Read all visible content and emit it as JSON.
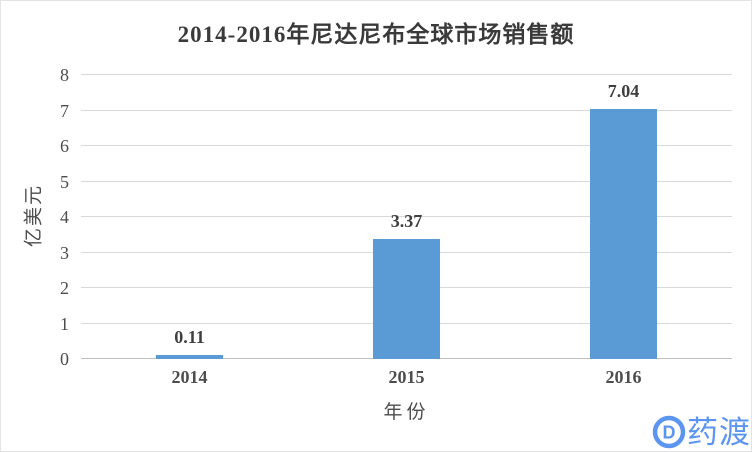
{
  "watermark": {
    "text": "药渡",
    "icon": "pharmacodia-logo-icon",
    "color": "#5c95f0"
  },
  "chart_data": {
    "type": "bar",
    "title": "2014-2016年尼达尼布全球市场销售额",
    "categories": [
      "2014",
      "2015",
      "2016"
    ],
    "values": [
      0.11,
      3.37,
      7.04
    ],
    "data_labels": [
      "0.11",
      "3.37",
      "7.04"
    ],
    "xlabel": "年份",
    "ylabel": "亿美元",
    "ylim": [
      0,
      8
    ],
    "ytick_step": 1,
    "yticks": [
      "0",
      "1",
      "2",
      "3",
      "4",
      "5",
      "6",
      "7",
      "8"
    ],
    "grid": true,
    "legend": "none",
    "bar_color": "#5b9bd5",
    "gridline_color": "#d9d9d9",
    "axis_line_color": "#bfbfbf"
  }
}
